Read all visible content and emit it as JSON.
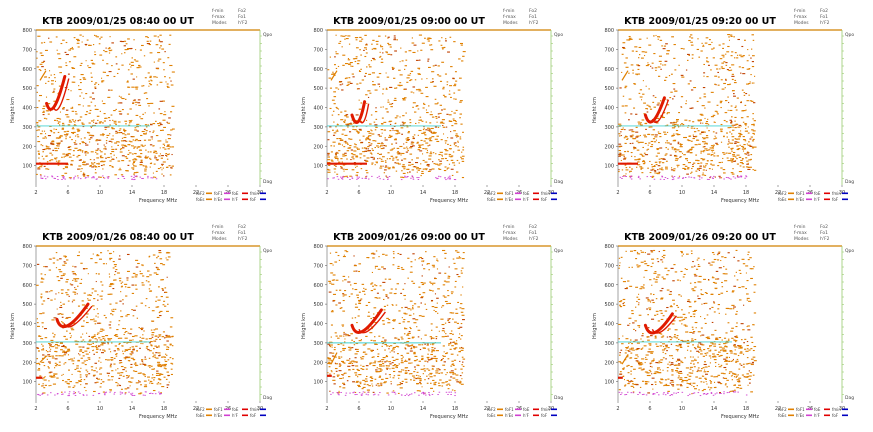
{
  "page": {
    "background": "#ffffff"
  },
  "legend_labels": {
    "col1": [
      "f-min",
      "f-max",
      "Modes"
    ],
    "col2": [
      "Fo2",
      "Fo1",
      "h'F2"
    ]
  },
  "bottom_legend": {
    "rows": [
      [
        "foF2",
        "foF1",
        "foE",
        "fmin"
      ],
      [
        "foEs",
        "h'Es",
        "h'F",
        "foF"
      ]
    ],
    "colors": [
      "#e08000",
      "#d040d0",
      "#e00000",
      "#0000c0"
    ]
  },
  "colors": {
    "ionogram_dot": "#e08000",
    "o_trace": "#e01a00",
    "virtual_height_line": "#40d0d0",
    "range_line": "#d08000",
    "axis": "#666666",
    "title": "#000000",
    "low_band": "#d040d0"
  },
  "chart_data": [
    {
      "type": "scatter",
      "title": "KTB 2009/01/25 08:40 00 UT",
      "xlabel": "Frequency MHz",
      "ylabel": "Height km",
      "x_ticks": [
        2,
        6,
        10,
        14,
        18,
        22,
        26,
        30
      ],
      "y_ticks": [
        100,
        200,
        300,
        400,
        500,
        600,
        700,
        800
      ],
      "xlim": [
        2,
        30
      ],
      "ylim": [
        0,
        800
      ],
      "right_axis": {
        "top_label": "Qpo",
        "bottom_label": "Dag"
      },
      "trace": {
        "start": [
          3.7,
          390
        ],
        "end": [
          5.6,
          560
        ]
      },
      "horizontal_line_height": 305,
      "low_trace": {
        "from": 2,
        "to": 6,
        "height": 110
      },
      "side_strip": {
        "x": 2.5,
        "from": 540,
        "to": 590
      }
    },
    {
      "type": "scatter",
      "title": "KTB 2009/01/25 09:00 00 UT",
      "xlabel": "Frequency MHz",
      "ylabel": "Height km",
      "x_ticks": [
        2,
        6,
        10,
        14,
        18,
        22,
        26,
        30
      ],
      "y_ticks": [
        100,
        200,
        300,
        400,
        500,
        600,
        700,
        800
      ],
      "xlim": [
        2,
        30
      ],
      "ylim": [
        0,
        800
      ],
      "right_axis": {
        "top_label": "Qpo",
        "bottom_label": "Dag"
      },
      "trace": {
        "start": [
          5.5,
          330
        ],
        "end": [
          6.7,
          430
        ]
      },
      "horizontal_line_height": 305,
      "low_trace": {
        "from": 2,
        "to": 7,
        "height": 110
      },
      "side_strip": {
        "x": 2.5,
        "from": 540,
        "to": 590
      }
    },
    {
      "type": "scatter",
      "title": "KTB 2009/01/25 09:20 00 UT",
      "xlabel": "Frequency MHz",
      "ylabel": "Height km",
      "x_ticks": [
        2,
        6,
        10,
        14,
        18,
        22,
        26,
        30
      ],
      "y_ticks": [
        100,
        200,
        300,
        400,
        500,
        600,
        700,
        800
      ],
      "xlim": [
        2,
        30
      ],
      "ylim": [
        0,
        800
      ],
      "right_axis": {
        "top_label": "Qpo",
        "bottom_label": "Dag"
      },
      "trace": {
        "start": [
          5.8,
          330
        ],
        "end": [
          7.8,
          450
        ]
      },
      "horizontal_line_height": 305,
      "low_trace": {
        "from": 2,
        "to": 4.5,
        "height": 110
      },
      "side_strip": {
        "x": 2.5,
        "from": 540,
        "to": 590
      }
    },
    {
      "type": "scatter",
      "title": "KTB 2009/01/26 08:40 00 UT",
      "xlabel": "Frequency MHz",
      "ylabel": "Height km",
      "x_ticks": [
        2,
        6,
        10,
        14,
        18,
        22,
        26,
        30
      ],
      "y_ticks": [
        100,
        200,
        300,
        400,
        500,
        600,
        700,
        800
      ],
      "xlim": [
        2,
        30
      ],
      "ylim": [
        0,
        800
      ],
      "right_axis": {
        "top_label": "Qpo",
        "bottom_label": "Dag"
      },
      "trace": {
        "start": [
          5.0,
          390
        ],
        "end": [
          8.5,
          500
        ]
      },
      "horizontal_line_height": 305,
      "low_trace": {
        "from": 2,
        "to": 2.8,
        "height": 120
      },
      "side_strip": {
        "x": 2.5,
        "from": 200,
        "to": 230
      }
    },
    {
      "type": "scatter",
      "title": "KTB 2009/01/26 09:00 00 UT",
      "xlabel": "Frequency MHz",
      "ylabel": "Height km",
      "x_ticks": [
        2,
        6,
        10,
        14,
        18,
        22,
        26,
        30
      ],
      "y_ticks": [
        100,
        200,
        300,
        400,
        500,
        600,
        700,
        800
      ],
      "xlim": [
        2,
        30
      ],
      "ylim": [
        0,
        800
      ],
      "right_axis": {
        "top_label": "Qpo",
        "bottom_label": "Dag"
      },
      "trace": {
        "start": [
          5.5,
          360
        ],
        "end": [
          8.8,
          470
        ]
      },
      "horizontal_line_height": 300,
      "low_trace": {
        "from": 2,
        "to": 2.6,
        "height": 130
      },
      "side_strip": {
        "x": 2.5,
        "from": 190,
        "to": 250
      }
    },
    {
      "type": "scatter",
      "title": "KTB 2009/01/26 09:20 00 UT",
      "xlabel": "Frequency MHz",
      "ylabel": "Height km",
      "x_ticks": [
        2,
        6,
        10,
        14,
        18,
        22,
        26,
        30
      ],
      "y_ticks": [
        100,
        200,
        300,
        400,
        500,
        600,
        700,
        800
      ],
      "xlim": [
        2,
        30
      ],
      "ylim": [
        0,
        800
      ],
      "right_axis": {
        "top_label": "Qpo",
        "bottom_label": "Dag"
      },
      "trace": {
        "start": [
          5.8,
          360
        ],
        "end": [
          8.8,
          450
        ]
      },
      "horizontal_line_height": 305,
      "low_trace": {
        "from": 2,
        "to": 2.6,
        "height": 120
      },
      "side_strip": {
        "x": 2.5,
        "from": 190,
        "to": 240
      }
    }
  ]
}
